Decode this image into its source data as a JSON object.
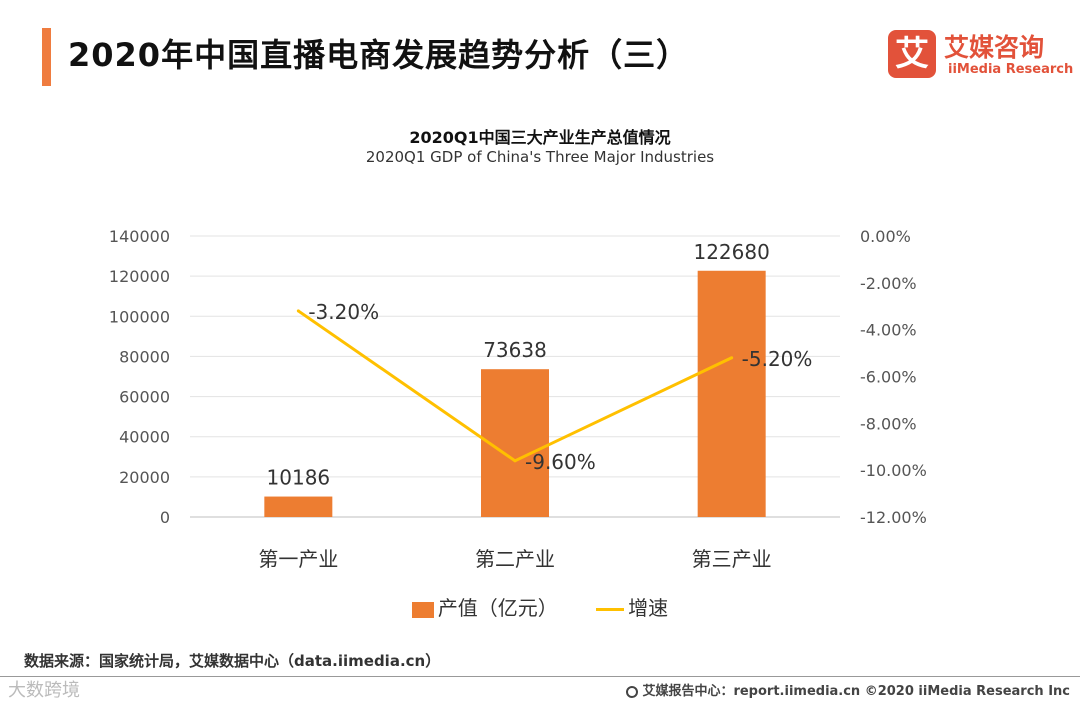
{
  "header": {
    "title": "2020年中国直播电商发展趋势分析（三）",
    "logo_mark": "艾",
    "logo_cn": "艾媒咨询",
    "logo_en": "iiMedia Research"
  },
  "colors": {
    "accent": "#ef7c3f",
    "bar": "#ed7d31",
    "line": "#ffc000",
    "brand": "#e2523a"
  },
  "chart_data": {
    "type": "bar",
    "title": "2020Q1中国三大产业生产总值情况",
    "subtitle": "2020Q1 GDP of China's Three Major Industries",
    "categories": [
      "第一产业",
      "第二产业",
      "第三产业"
    ],
    "series": [
      {
        "name": "产值（亿元）",
        "type": "bar",
        "axis": "left",
        "values": [
          10186,
          73638,
          122680
        ],
        "labels": [
          "10186",
          "73638",
          "122680"
        ]
      },
      {
        "name": "增速",
        "type": "line",
        "axis": "right",
        "values": [
          -3.2,
          -9.6,
          -5.2
        ],
        "labels": [
          "-3.20%",
          "-9.60%",
          "-5.20%"
        ]
      }
    ],
    "y_left": {
      "min": 0,
      "max": 140000,
      "ticks": [
        "0",
        "20000",
        "40000",
        "60000",
        "80000",
        "100000",
        "120000",
        "140000"
      ]
    },
    "y_right": {
      "min": -12,
      "max": 0,
      "ticks": [
        "-12.00%",
        "-10.00%",
        "-8.00%",
        "-6.00%",
        "-4.00%",
        "-2.00%",
        "0.00%"
      ]
    },
    "grid": true,
    "legend": "bottom-center"
  },
  "footer": {
    "source": "数据来源：国家统计局，艾媒数据中心（data.iimedia.cn）",
    "watermark": "大数跨境",
    "right": "艾媒报告中心：report.iimedia.cn   ©2020  iiMedia Research  Inc"
  }
}
